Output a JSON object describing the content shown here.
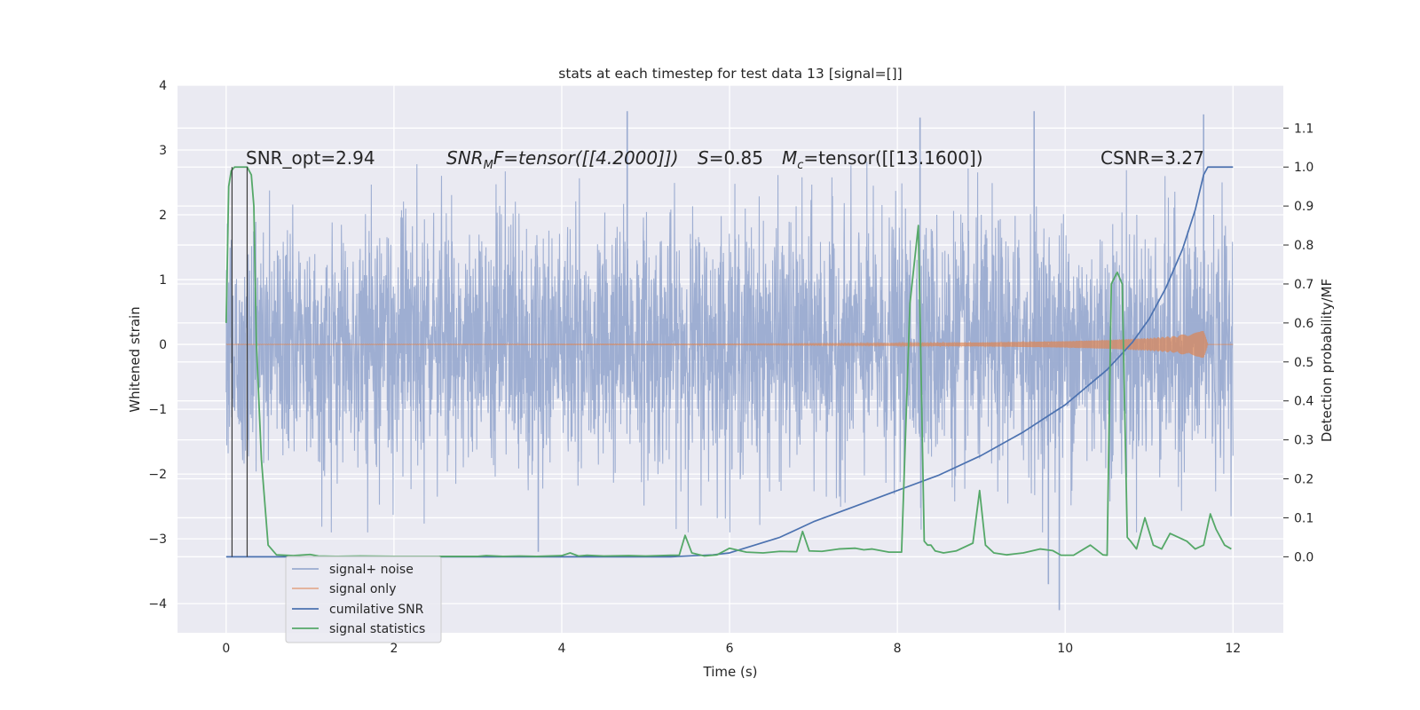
{
  "chart_data": {
    "type": "line",
    "title": "stats at each timestep for test data 13 [signal=[]]",
    "xlabel": "Time (s)",
    "ylabel": "Whitened strain",
    "ylabel_right": "Detection probability/MF",
    "xlim": [
      -0.58,
      12.6
    ],
    "ylim": [
      -4.45,
      4.0
    ],
    "ylim_right": [
      -0.195,
      1.21
    ],
    "xticks": [
      0,
      2,
      4,
      6,
      8,
      10,
      12
    ],
    "xtick_labels": [
      "0",
      "2",
      "4",
      "6",
      "8",
      "10",
      "12"
    ],
    "yticks": [
      4,
      3,
      2,
      1,
      0,
      -1,
      -2,
      -3,
      -4
    ],
    "ytick_labels": [
      "4",
      "3",
      "2",
      "1",
      "0",
      "−1",
      "−2",
      "−3",
      "−4"
    ],
    "yticks_right": [
      0.0,
      0.1,
      0.2,
      0.3,
      0.4,
      0.5,
      0.6,
      0.7,
      0.8,
      0.9,
      1.0,
      1.1
    ],
    "ytick_labels_right": [
      "0.0",
      "0.1",
      "0.2",
      "0.3",
      "0.4",
      "0.5",
      "0.6",
      "0.7",
      "0.8",
      "0.9",
      "1.0",
      "1.1"
    ],
    "grid": true,
    "legend_position": "lower-left",
    "annotations": {
      "snr_opt": "SNR_opt=2.94",
      "snr_mf_main": "SNR",
      "snr_mf_sub": "M",
      "snr_mf_rest": "F=tensor([[4.2000]])",
      "s_italic": "S",
      "s_rest": "=0.85",
      "mc_main": "M",
      "mc_sub": "c",
      "mc_rest": "=tensor([[13.1600])",
      "csnr": "CSNR=3.27"
    },
    "vertical_markers_x": [
      0.07,
      0.25
    ],
    "series": [
      {
        "name": "signal+ noise",
        "axis": "left",
        "color": "#9aabd0",
        "description": "whitened strain noise, approx 0 mean, amplitude ~1.6 typical, peaks to ~3.6 / -4.1",
        "x_start": 0.0,
        "x_end": 12.0,
        "peaks": [
          {
            "x": 4.78,
            "y": 3.6
          },
          {
            "x": 9.63,
            "y": 3.6
          },
          {
            "x": 11.65,
            "y": 3.55
          },
          {
            "x": 8.27,
            "y": 3.5
          },
          {
            "x": 9.93,
            "y": -4.1
          },
          {
            "x": 9.8,
            "y": -3.7
          },
          {
            "x": 3.72,
            "y": -3.2
          }
        ]
      },
      {
        "name": "signal only",
        "axis": "left",
        "color": "#dd8452",
        "description": "chirp, amplitude grows to ~0.3 near t=11.65 then ends",
        "x": [
          0,
          6,
          8,
          9,
          10,
          10.5,
          11,
          11.3,
          11.5,
          11.6,
          11.65,
          11.7
        ],
        "envelope": [
          0.003,
          0.008,
          0.02,
          0.03,
          0.05,
          0.07,
          0.1,
          0.13,
          0.18,
          0.22,
          0.28,
          0.0
        ]
      },
      {
        "name": "cumilative SNR",
        "axis": "right",
        "color": "#4c72b0",
        "x": [
          0.0,
          5.3,
          5.8,
          6.0,
          6.3,
          6.6,
          7.0,
          7.5,
          8.0,
          8.5,
          9.0,
          9.5,
          10.0,
          10.5,
          10.8,
          11.0,
          11.2,
          11.4,
          11.55,
          11.65,
          11.7,
          12.0
        ],
        "values": [
          0.0,
          0.0,
          0.005,
          0.01,
          0.03,
          0.05,
          0.09,
          0.13,
          0.17,
          0.21,
          0.26,
          0.32,
          0.39,
          0.48,
          0.55,
          0.61,
          0.69,
          0.79,
          0.89,
          0.98,
          1.0,
          1.0
        ]
      },
      {
        "name": "signal statistics",
        "axis": "right",
        "color": "#55a868",
        "x": [
          0.0,
          0.03,
          0.06,
          0.1,
          0.15,
          0.2,
          0.25,
          0.3,
          0.33,
          0.36,
          0.42,
          0.5,
          0.6,
          0.8,
          1.0,
          1.1,
          1.3,
          1.6,
          2.0,
          2.5,
          3.0,
          3.1,
          3.3,
          3.5,
          3.7,
          4.0,
          4.1,
          4.2,
          4.3,
          4.5,
          4.8,
          5.0,
          5.3,
          5.4,
          5.47,
          5.55,
          5.7,
          5.85,
          6.0,
          6.2,
          6.4,
          6.6,
          6.8,
          6.87,
          6.95,
          7.1,
          7.3,
          7.5,
          7.6,
          7.7,
          7.9,
          8.05,
          8.15,
          8.25,
          8.32,
          8.36,
          8.4,
          8.45,
          8.55,
          8.7,
          8.9,
          8.98,
          9.05,
          9.15,
          9.3,
          9.5,
          9.7,
          9.85,
          9.95,
          10.1,
          10.3,
          10.45,
          10.5,
          10.55,
          10.62,
          10.68,
          10.74,
          10.78,
          10.85,
          10.95,
          11.05,
          11.15,
          11.25,
          11.35,
          11.45,
          11.55,
          11.65,
          11.73,
          11.8,
          11.9,
          11.98
        ],
        "values": [
          0.6,
          0.95,
          0.99,
          1.0,
          1.0,
          1.0,
          1.0,
          0.98,
          0.9,
          0.55,
          0.25,
          0.03,
          0.005,
          0.003,
          0.006,
          0.002,
          0.001,
          0.002,
          0.001,
          0.001,
          0.001,
          0.003,
          0.001,
          0.002,
          0.001,
          0.003,
          0.01,
          0.002,
          0.004,
          0.002,
          0.003,
          0.002,
          0.004,
          0.004,
          0.055,
          0.01,
          0.002,
          0.005,
          0.022,
          0.012,
          0.01,
          0.014,
          0.013,
          0.065,
          0.015,
          0.014,
          0.02,
          0.022,
          0.018,
          0.02,
          0.012,
          0.012,
          0.65,
          0.85,
          0.04,
          0.03,
          0.03,
          0.015,
          0.01,
          0.015,
          0.035,
          0.17,
          0.03,
          0.01,
          0.005,
          0.01,
          0.02,
          0.016,
          0.004,
          0.004,
          0.03,
          0.005,
          0.004,
          0.7,
          0.73,
          0.7,
          0.05,
          0.04,
          0.02,
          0.1,
          0.03,
          0.02,
          0.06,
          0.05,
          0.04,
          0.02,
          0.03,
          0.11,
          0.07,
          0.03,
          0.02
        ]
      }
    ]
  }
}
